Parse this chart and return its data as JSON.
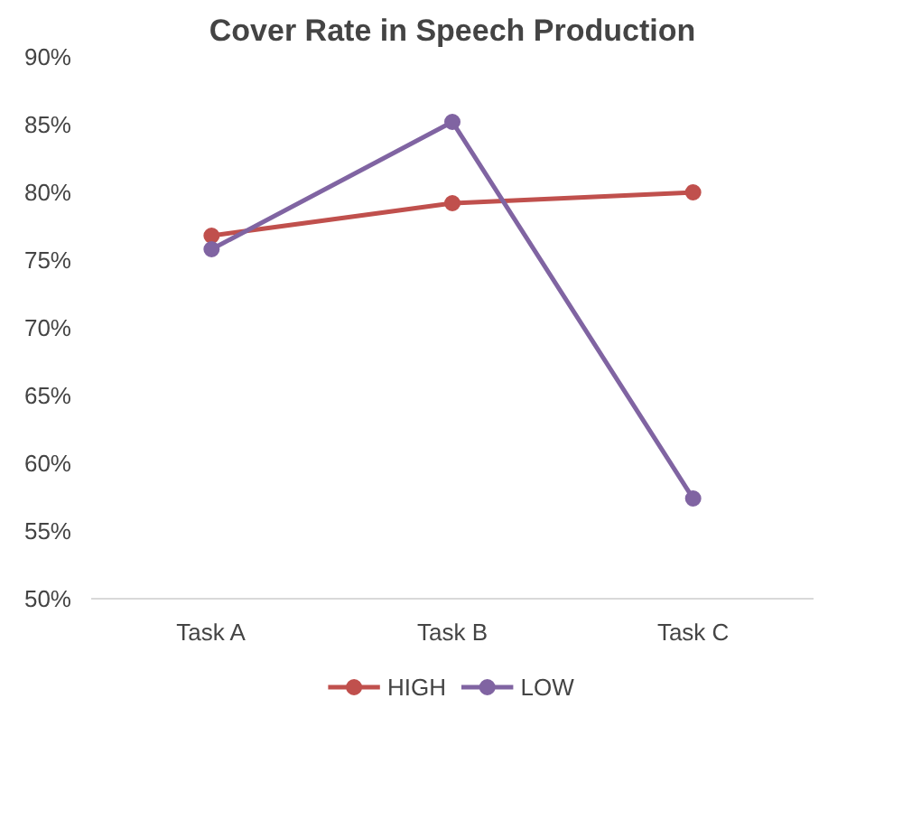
{
  "chart_data": {
    "type": "line",
    "title": "Cover Rate in Speech Production",
    "categories": [
      "Task A",
      "Task B",
      "Task C"
    ],
    "series": [
      {
        "name": "HIGH",
        "color": "#c0504d",
        "values": [
          76.8,
          79.2,
          80.0
        ]
      },
      {
        "name": "LOW",
        "color": "#8064a2",
        "values": [
          75.8,
          85.2,
          57.4
        ]
      }
    ],
    "ylim": [
      50,
      90
    ],
    "yticks": [
      {
        "value": 50,
        "label": "50%"
      },
      {
        "value": 55,
        "label": "55%"
      },
      {
        "value": 60,
        "label": "60%"
      },
      {
        "value": 65,
        "label": "65%"
      },
      {
        "value": 70,
        "label": "70%"
      },
      {
        "value": 75,
        "label": "75%"
      },
      {
        "value": 80,
        "label": "80%"
      },
      {
        "value": 85,
        "label": "85%"
      },
      {
        "value": 90,
        "label": "90%"
      }
    ],
    "grid": false,
    "legend": "bottom",
    "marker": "circle",
    "line_style": "solid"
  }
}
